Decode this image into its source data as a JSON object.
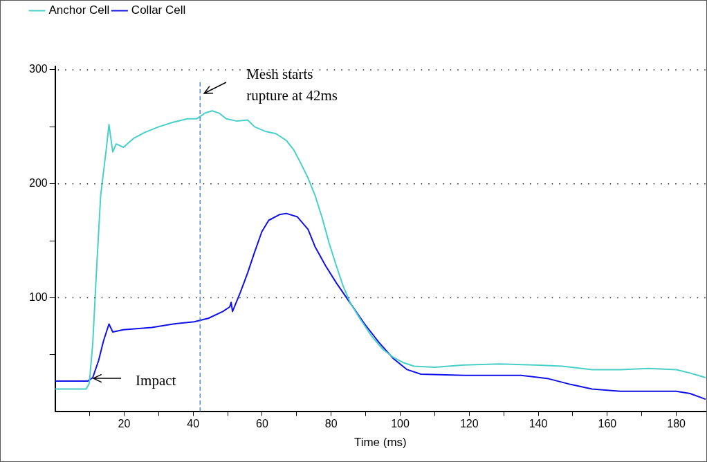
{
  "chart_data": {
    "type": "line",
    "xlabel": "Time (ms)",
    "series": [
      {
        "name": "Anchor Cell",
        "color": "#48d0c8",
        "x": [
          0,
          9,
          9.9,
          10.9,
          12.1,
          13.2,
          14.8,
          15.6,
          16.7,
          17.7,
          19.8,
          22.8,
          25.9,
          30,
          34.2,
          38.3,
          41,
          43.4,
          45.5,
          47.5,
          49.6,
          52.7,
          55.8,
          57.8,
          60.9,
          64,
          67,
          69.1,
          71.2,
          73.3,
          75.3,
          77.4,
          79.4,
          81.5,
          83.5,
          85.6,
          88.7,
          91.8,
          94.9,
          97.9,
          101,
          104,
          110,
          118.5,
          128.8,
          139,
          147,
          155.6,
          163.8,
          172,
          180,
          184,
          188.5
        ],
        "values": [
          20,
          20,
          25,
          60,
          130,
          190,
          230,
          252,
          228,
          235,
          232,
          240,
          245,
          250,
          254,
          257,
          257,
          262,
          264,
          262,
          257,
          255,
          256,
          250,
          246,
          244,
          238,
          230,
          218,
          205,
          190,
          170,
          148,
          128,
          110,
          95,
          80,
          66,
          55,
          48,
          43,
          40,
          39,
          41,
          42,
          41,
          40,
          37,
          37,
          38,
          37,
          34,
          30
        ]
      },
      {
        "name": "Collar Cell",
        "color": "#1010e8",
        "x": [
          0,
          9.5,
          10.9,
          12.6,
          14,
          15.6,
          16.7,
          19.8,
          28,
          34.2,
          40.3,
          44.4,
          48.6,
          50.6,
          51,
          51.4,
          53.7,
          55.8,
          57.8,
          59.9,
          61.9,
          65,
          67,
          70.2,
          73.3,
          75.3,
          78.4,
          81.5,
          85.6,
          89.7,
          93.8,
          97.9,
          102,
          106,
          118.5,
          135,
          143,
          149.4,
          155.6,
          163.8,
          180,
          184,
          188.5
        ],
        "values": [
          27,
          27,
          30,
          45,
          62,
          77,
          70,
          72,
          74,
          77,
          79,
          82,
          88,
          92,
          96,
          88,
          105,
          122,
          140,
          158,
          168,
          173,
          174,
          171,
          160,
          145,
          128,
          113,
          95,
          77,
          61,
          47,
          37,
          33,
          32,
          32,
          29,
          24,
          20,
          18,
          18,
          16,
          11
        ]
      }
    ],
    "xlim": [
      0,
      188.5
    ],
    "xticks": [
      {
        "value": 10,
        "label": null
      },
      20,
      {
        "value": 30,
        "label": null
      },
      40,
      {
        "value": 50,
        "label": null
      },
      60,
      {
        "value": 70,
        "label": null
      },
      80,
      {
        "value": 90,
        "label": null
      },
      100,
      {
        "value": 110,
        "label": null
      },
      120,
      {
        "value": 130,
        "label": null
      },
      140,
      {
        "value": 150,
        "label": null
      },
      160,
      {
        "value": 170,
        "label": null
      },
      180
    ],
    "ylim": [
      0,
      303
    ],
    "yticks": [
      {
        "value": 50,
        "label": null
      },
      100,
      {
        "value": 150,
        "label": null
      },
      200,
      {
        "value": 250,
        "label": null
      },
      300
    ],
    "grid": "y",
    "legend": "top left",
    "line_style": "solid",
    "marker": "none",
    "ref_lines": [
      {
        "axis": "x",
        "value": 42,
        "color": "#3c78c8",
        "line_style": "dashed"
      }
    ],
    "annotations": [
      {
        "text": "Mesh starts\nrupture at 42ms",
        "x": 43,
        "y": 280
      },
      {
        "text": "Impact",
        "x": 10.9,
        "y": 30
      }
    ]
  }
}
